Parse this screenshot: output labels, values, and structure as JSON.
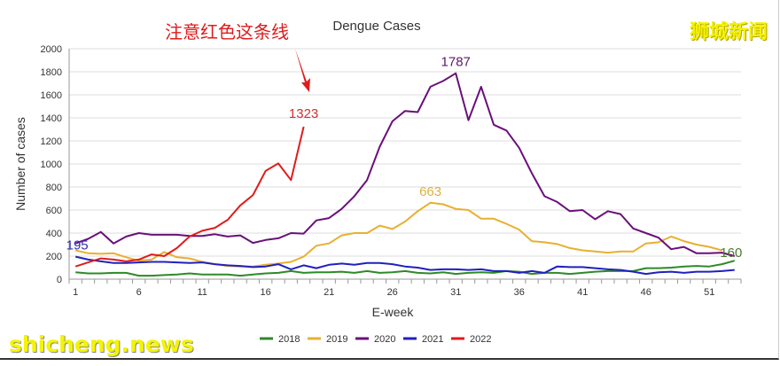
{
  "chart_data": {
    "type": "line",
    "title": "Dengue Cases",
    "xlabel": "E-week",
    "ylabel": "Number of cases",
    "ylim": [
      0,
      2000
    ],
    "yticks": [
      0,
      200,
      400,
      600,
      800,
      1000,
      1200,
      1400,
      1600,
      1800,
      2000
    ],
    "xticks": [
      1,
      6,
      11,
      16,
      21,
      26,
      31,
      36,
      41,
      46,
      51
    ],
    "xrange": [
      1,
      53
    ],
    "grid": true,
    "legend_position": "bottom",
    "series": [
      {
        "name": "2018",
        "color": "#2e8a26",
        "values": [
          60,
          50,
          50,
          55,
          55,
          30,
          30,
          35,
          40,
          50,
          40,
          40,
          40,
          30,
          40,
          50,
          55,
          70,
          55,
          60,
          60,
          65,
          55,
          70,
          55,
          60,
          70,
          55,
          50,
          60,
          45,
          55,
          60,
          55,
          70,
          65,
          45,
          55,
          55,
          45,
          55,
          65,
          70,
          70,
          70,
          95,
          95,
          100,
          110,
          115,
          110,
          130,
          160
        ]
      },
      {
        "name": "2019",
        "color": "#e8b030",
        "values": [
          250,
          225,
          220,
          225,
          190,
          160,
          170,
          235,
          190,
          180,
          150,
          130,
          115,
          110,
          110,
          125,
          135,
          150,
          195,
          290,
          310,
          380,
          400,
          400,
          465,
          435,
          500,
          590,
          663,
          650,
          610,
          600,
          525,
          525,
          480,
          430,
          330,
          320,
          305,
          270,
          250,
          240,
          230,
          240,
          240,
          310,
          320,
          370,
          330,
          300,
          280,
          250
        ]
      },
      {
        "name": "2020",
        "color": "#6a0f7a",
        "values": [
          310,
          350,
          410,
          310,
          370,
          400,
          385,
          385,
          385,
          375,
          375,
          390,
          370,
          380,
          315,
          340,
          355,
          400,
          395,
          510,
          530,
          610,
          720,
          860,
          1150,
          1370,
          1460,
          1450,
          1670,
          1720,
          1787,
          1380,
          1670,
          1340,
          1290,
          1140,
          920,
          720,
          670,
          590,
          600,
          520,
          590,
          565,
          440,
          400,
          360,
          260,
          280,
          225,
          225,
          230,
          200
        ]
      },
      {
        "name": "2021",
        "color": "#2020c0",
        "values": [
          195,
          170,
          155,
          140,
          140,
          145,
          150,
          150,
          145,
          140,
          145,
          130,
          120,
          115,
          105,
          110,
          130,
          85,
          120,
          95,
          125,
          135,
          125,
          140,
          140,
          130,
          110,
          100,
          80,
          85,
          85,
          80,
          85,
          70,
          70,
          55,
          70,
          55,
          110,
          105,
          105,
          95,
          85,
          80,
          65,
          45,
          60,
          65,
          55,
          65,
          65,
          70,
          80
        ]
      },
      {
        "name": "2022",
        "color": "#e01b1b",
        "values": [
          110,
          145,
          180,
          170,
          155,
          170,
          215,
          200,
          270,
          370,
          420,
          445,
          515,
          640,
          730,
          940,
          1005,
          860,
          1323
        ]
      }
    ],
    "annotations": [
      {
        "text": "195",
        "series": "2021",
        "x": 1,
        "color": "#3030b0"
      },
      {
        "text": "1323",
        "series": "2022",
        "x": 19,
        "color": "#d03030"
      },
      {
        "text": "1787",
        "series": "2020",
        "x": 31,
        "color": "#5a1a6a"
      },
      {
        "text": "663",
        "series": "2019",
        "x": 29,
        "color": "#e0b040"
      },
      {
        "text": "160",
        "series": "2018",
        "x": 53,
        "color": "#4a7a2a"
      }
    ]
  },
  "overlay": {
    "note_text": "注意红色这条线",
    "note_color": "#e01b1b",
    "watermark_cn": "狮城新闻",
    "watermark_en": "shicheng.news"
  }
}
